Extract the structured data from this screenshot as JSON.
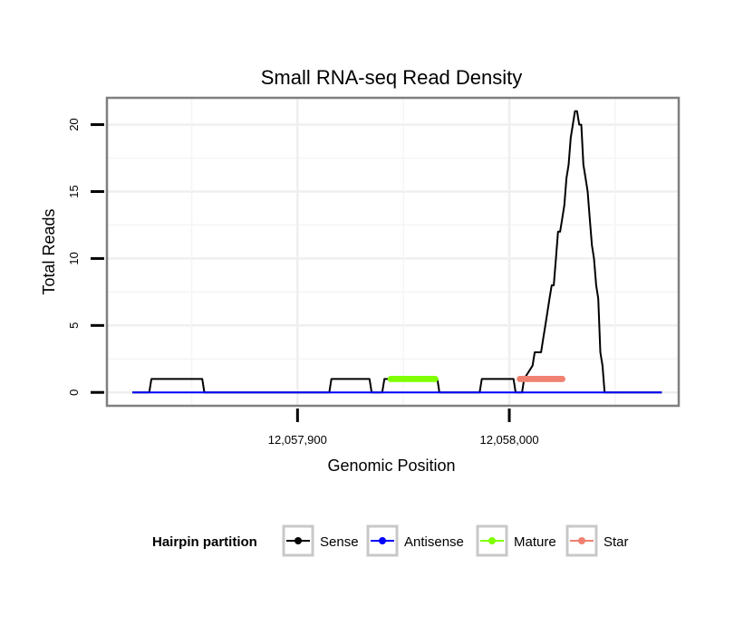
{
  "chart_data": {
    "type": "line",
    "title": "Small RNA-seq Read Density",
    "xlabel": "Genomic Position",
    "ylabel": "Total Reads",
    "xlim": [
      12057810,
      12058080
    ],
    "ylim": [
      -1,
      22
    ],
    "x_ticks": [
      {
        "value": 12057900,
        "label": "12,057,900"
      },
      {
        "value": 12058000,
        "label": "12,058,000"
      }
    ],
    "y_ticks": [
      {
        "value": 0,
        "label": "0"
      },
      {
        "value": 5,
        "label": "5"
      },
      {
        "value": 10,
        "label": "10"
      },
      {
        "value": 15,
        "label": "15"
      },
      {
        "value": 20,
        "label": "20"
      }
    ],
    "grid": true,
    "legend": {
      "title": "Hairpin partition",
      "position": "bottom",
      "entries": [
        {
          "name": "Sense",
          "color": "#000000"
        },
        {
          "name": "Antisense",
          "color": "#0000ff"
        },
        {
          "name": "Mature",
          "color": "#7fff00"
        },
        {
          "name": "Star",
          "color": "#f08070"
        }
      ]
    },
    "series": [
      {
        "name": "Sense",
        "color": "#000000",
        "style": "line",
        "x": [
          12057822,
          12057830,
          12057831,
          12057855,
          12057856,
          12057915,
          12057916,
          12057934,
          12057935,
          12057940,
          12057941,
          12057966,
          12057967,
          12057986,
          12057987,
          12058002,
          12058003,
          12058006,
          12058007,
          12058011,
          12058012,
          12058015,
          12058016,
          12058017,
          12058018,
          12058019,
          12058020,
          12058021,
          12058022,
          12058023,
          12058024,
          12058025,
          12058026,
          12058027,
          12058028,
          12058029,
          12058031,
          12058032,
          12058033,
          12058034,
          12058035,
          12058036,
          12058037,
          12058038,
          12058039,
          12058040,
          12058041,
          12058042,
          12058043,
          12058044,
          12058045,
          12058046,
          12058047,
          12058048,
          12058072
        ],
        "y": [
          0,
          0,
          1,
          1,
          0,
          0,
          1,
          1,
          0,
          0,
          1,
          1,
          0,
          0,
          1,
          1,
          0,
          0,
          1,
          2,
          3,
          3,
          4,
          5,
          6,
          7,
          8,
          8,
          10,
          12,
          12,
          13,
          14,
          16,
          17,
          19,
          21,
          21,
          20,
          20,
          17,
          16,
          15,
          13,
          11,
          10,
          8,
          7,
          3,
          2,
          0,
          0,
          0,
          0,
          0
        ]
      },
      {
        "name": "Antisense",
        "color": "#0000ff",
        "style": "line",
        "x": [
          12057822,
          12058072
        ],
        "y": [
          0,
          0
        ]
      },
      {
        "name": "Mature",
        "color": "#7fff00",
        "style": "points",
        "x": [
          12057944,
          12057945,
          12057946,
          12057947,
          12057948,
          12057949,
          12057950,
          12057951,
          12057952,
          12057953,
          12057954,
          12057955,
          12057956,
          12057957,
          12057958,
          12057959,
          12057960,
          12057961,
          12057962,
          12057963,
          12057964,
          12057965
        ],
        "y": [
          1,
          1,
          1,
          1,
          1,
          1,
          1,
          1,
          1,
          1,
          1,
          1,
          1,
          1,
          1,
          1,
          1,
          1,
          1,
          1,
          1,
          1
        ]
      },
      {
        "name": "Star",
        "color": "#f08070",
        "style": "points",
        "x": [
          12058005,
          12058006,
          12058007,
          12058008,
          12058009,
          12058010,
          12058011,
          12058012,
          12058013,
          12058014,
          12058015,
          12058016,
          12058017,
          12058018,
          12058019,
          12058020,
          12058021,
          12058022,
          12058023,
          12058024,
          12058025
        ],
        "y": [
          1,
          1,
          1,
          1,
          1,
          1,
          1,
          1,
          1,
          1,
          1,
          1,
          1,
          1,
          1,
          1,
          1,
          1,
          1,
          1,
          1
        ]
      }
    ]
  }
}
